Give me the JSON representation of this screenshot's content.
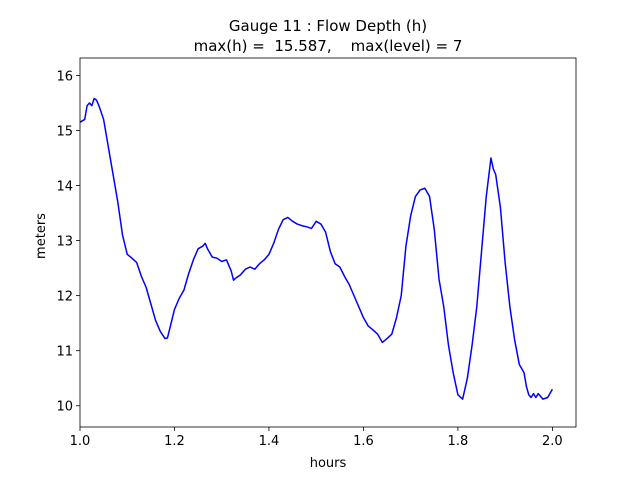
{
  "chart_data": {
    "type": "line",
    "title": "Gauge 11 : Flow Depth (h)",
    "subtitle": "max(h) =  15.587,    max(level) = 7",
    "xlabel": "hours",
    "ylabel": "meters",
    "xlim": [
      1.0,
      2.05
    ],
    "ylim": [
      9.614,
      16.316
    ],
    "xticks": [
      {
        "value": 1.0,
        "label": "1.0"
      },
      1.2,
      1.4,
      1.6,
      1.8,
      {
        "value": 2.0,
        "label": "2.0"
      }
    ],
    "yticks": [
      10,
      11,
      12,
      13,
      14,
      15,
      16
    ],
    "grid": false,
    "series": [
      {
        "name": "h",
        "color": "#0000ff",
        "x": [
          1.0,
          1.01,
          1.015,
          1.02,
          1.025,
          1.03,
          1.035,
          1.04,
          1.05,
          1.06,
          1.07,
          1.08,
          1.09,
          1.1,
          1.11,
          1.12,
          1.13,
          1.14,
          1.15,
          1.16,
          1.17,
          1.18,
          1.185,
          1.19,
          1.2,
          1.21,
          1.22,
          1.23,
          1.24,
          1.25,
          1.26,
          1.265,
          1.27,
          1.28,
          1.29,
          1.3,
          1.31,
          1.32,
          1.325,
          1.33,
          1.34,
          1.35,
          1.36,
          1.37,
          1.38,
          1.39,
          1.4,
          1.41,
          1.42,
          1.43,
          1.44,
          1.45,
          1.46,
          1.47,
          1.48,
          1.49,
          1.5,
          1.51,
          1.52,
          1.53,
          1.54,
          1.55,
          1.56,
          1.57,
          1.58,
          1.59,
          1.6,
          1.61,
          1.62,
          1.63,
          1.64,
          1.65,
          1.66,
          1.67,
          1.68,
          1.69,
          1.7,
          1.71,
          1.72,
          1.73,
          1.74,
          1.75,
          1.76,
          1.77,
          1.78,
          1.79,
          1.8,
          1.81,
          1.82,
          1.83,
          1.84,
          1.85,
          1.86,
          1.87,
          1.875,
          1.88,
          1.89,
          1.9,
          1.91,
          1.92,
          1.93,
          1.94,
          1.945,
          1.95,
          1.955,
          1.96,
          1.965,
          1.97,
          1.98,
          1.99,
          2.0
        ],
        "values": [
          15.15,
          15.2,
          15.45,
          15.5,
          15.45,
          15.58,
          15.55,
          15.45,
          15.2,
          14.7,
          14.2,
          13.7,
          13.1,
          12.75,
          12.68,
          12.6,
          12.35,
          12.15,
          11.85,
          11.55,
          11.35,
          11.22,
          11.23,
          11.4,
          11.75,
          11.95,
          12.1,
          12.4,
          12.65,
          12.85,
          12.9,
          12.95,
          12.85,
          12.7,
          12.68,
          12.62,
          12.65,
          12.45,
          12.28,
          12.32,
          12.38,
          12.48,
          12.52,
          12.48,
          12.58,
          12.65,
          12.75,
          12.95,
          13.2,
          13.38,
          13.42,
          13.35,
          13.3,
          13.27,
          13.25,
          13.22,
          13.35,
          13.3,
          13.15,
          12.8,
          12.58,
          12.52,
          12.35,
          12.2,
          12.0,
          11.8,
          11.6,
          11.45,
          11.38,
          11.3,
          11.15,
          11.22,
          11.3,
          11.6,
          12.0,
          12.9,
          13.45,
          13.8,
          13.92,
          13.95,
          13.8,
          13.2,
          12.3,
          11.8,
          11.1,
          10.6,
          10.2,
          10.12,
          10.5,
          11.1,
          11.8,
          12.8,
          13.8,
          14.5,
          14.3,
          14.2,
          13.6,
          12.6,
          11.8,
          11.2,
          10.75,
          10.6,
          10.35,
          10.2,
          10.15,
          10.22,
          10.15,
          10.22,
          10.12,
          10.15,
          10.3
        ]
      }
    ]
  }
}
